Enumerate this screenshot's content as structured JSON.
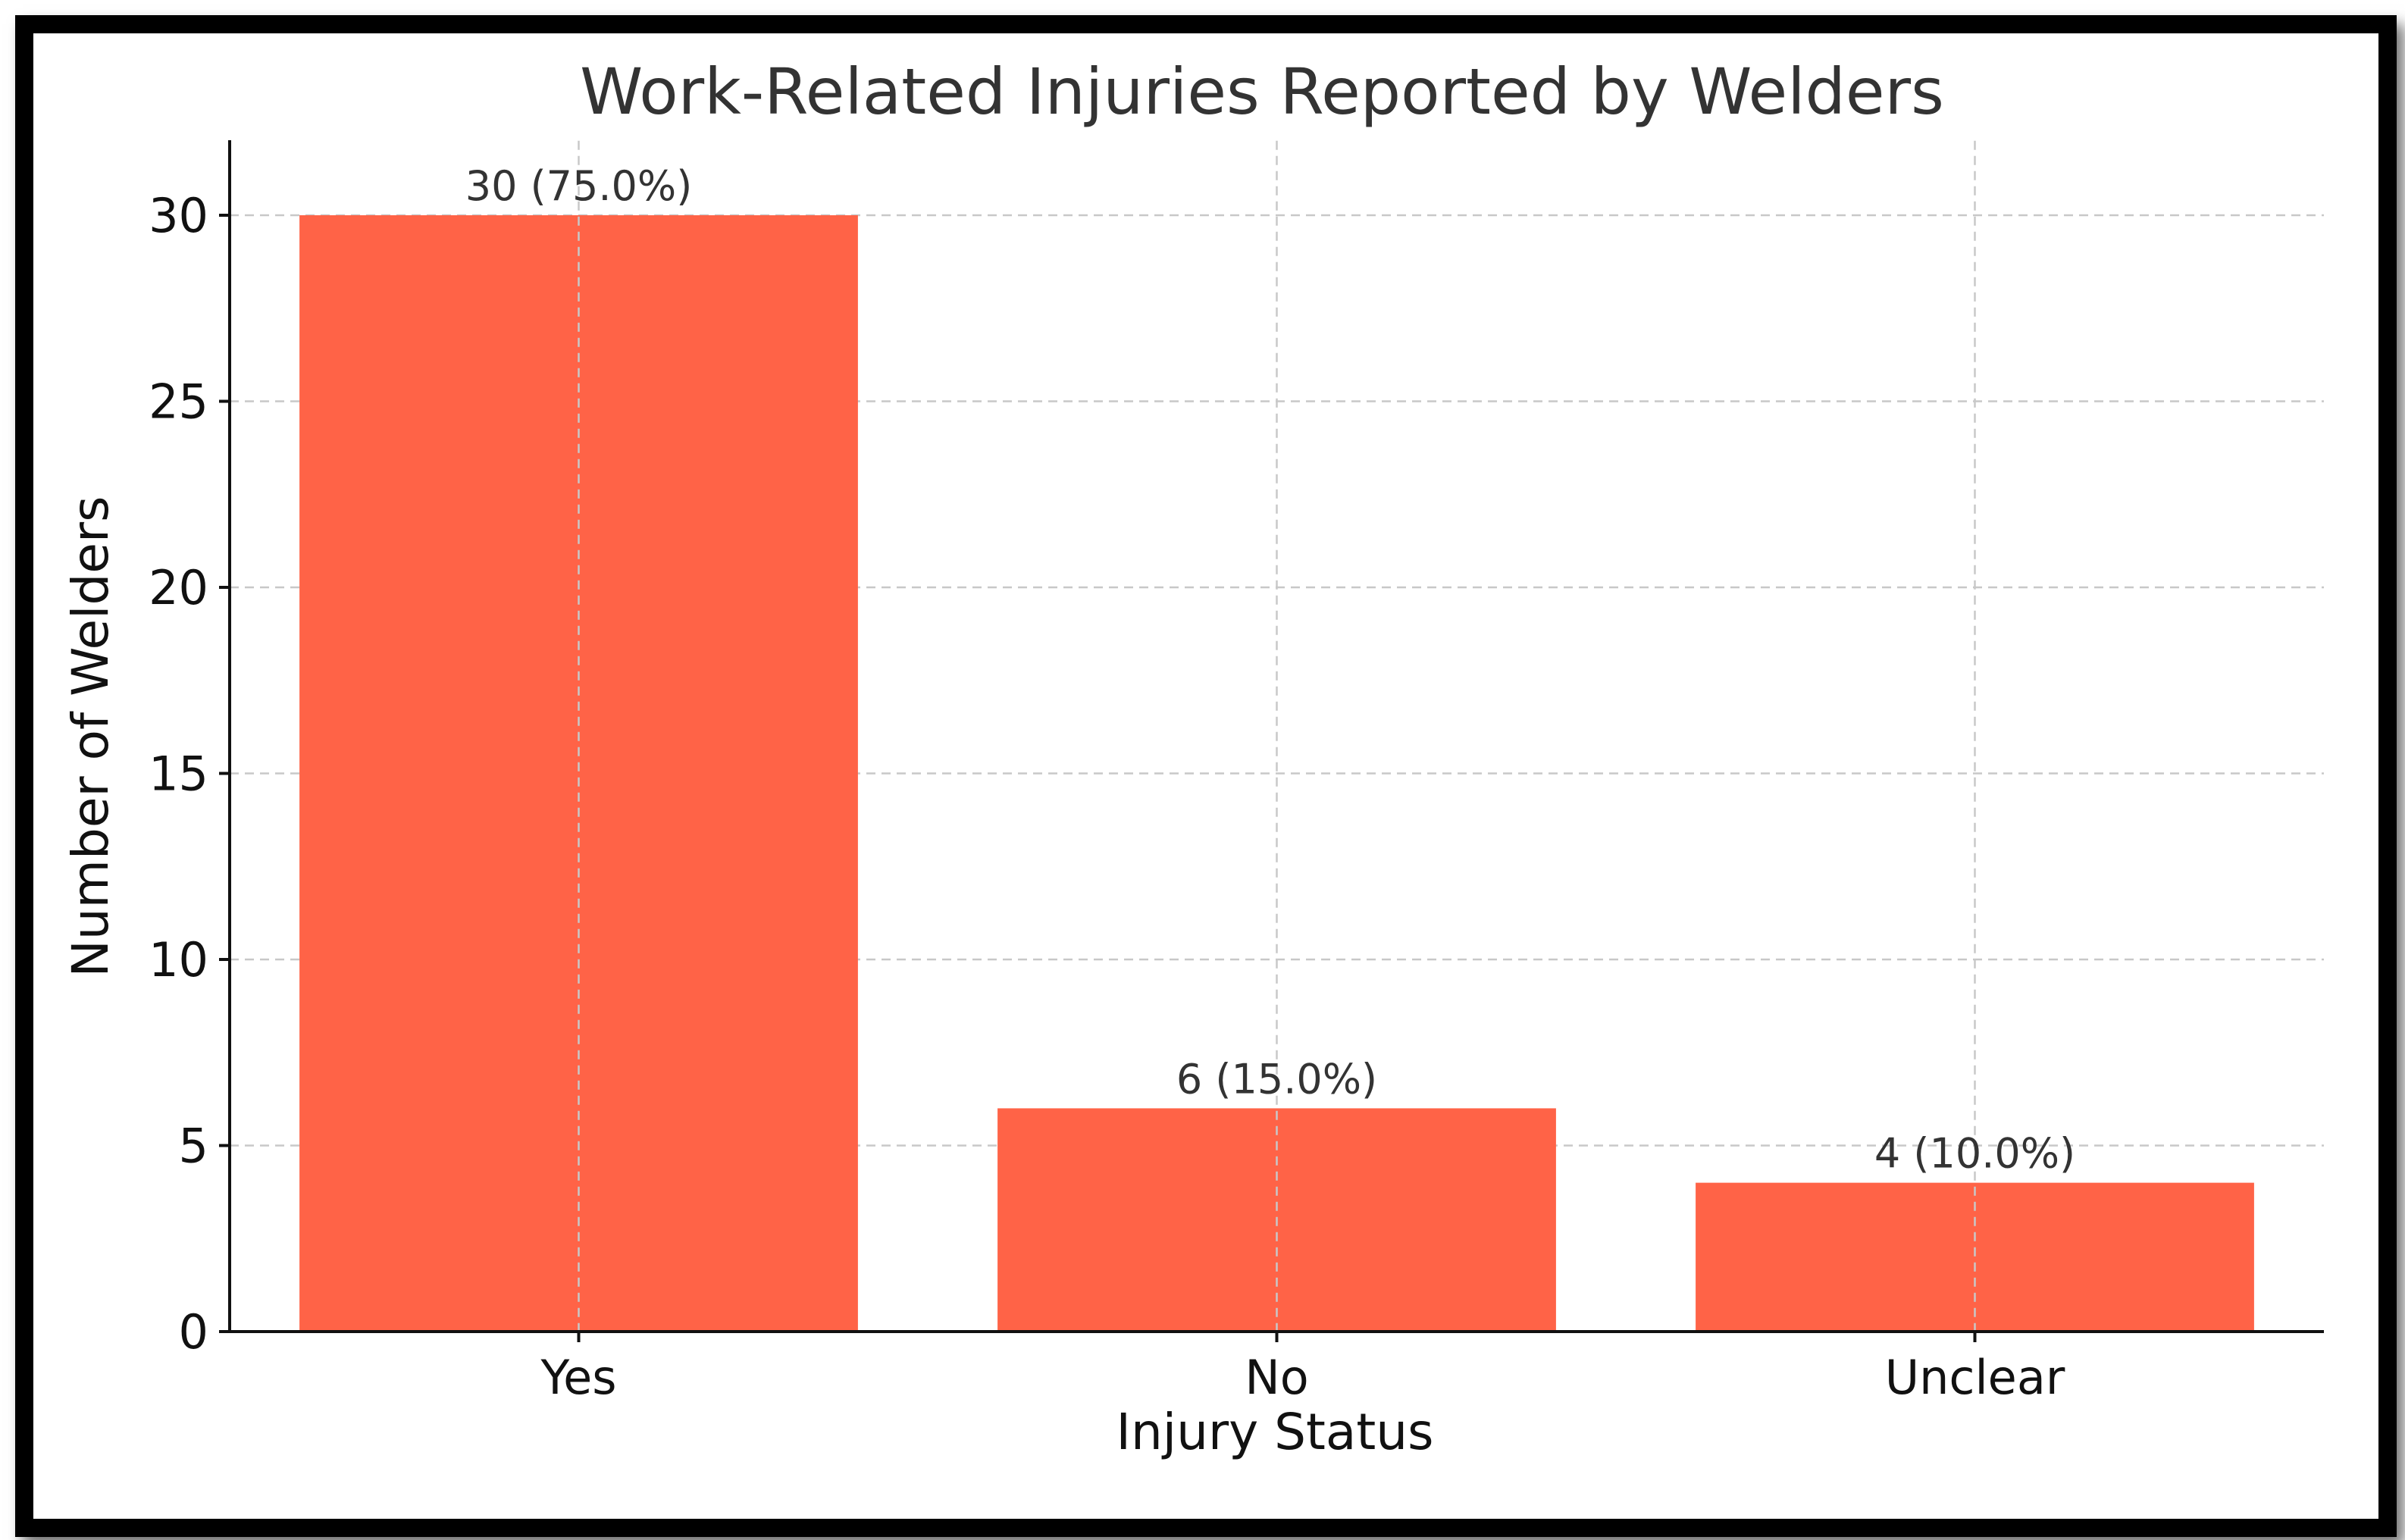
{
  "chart_data": {
    "type": "bar",
    "title": "Work-Related Injuries Reported by Welders",
    "xlabel": "Injury Status",
    "ylabel": "Number of Welders",
    "categories": [
      "Yes",
      "No",
      "Unclear"
    ],
    "values": [
      30,
      6,
      4
    ],
    "data_labels": [
      "30 (75.0%)",
      "6 (15.0%)",
      "4 (10.0%)"
    ],
    "ylim": [
      0,
      32
    ],
    "yticks": [
      0,
      5,
      10,
      15,
      20,
      25,
      30
    ],
    "grid": true,
    "bar_color": "#FF6347"
  }
}
